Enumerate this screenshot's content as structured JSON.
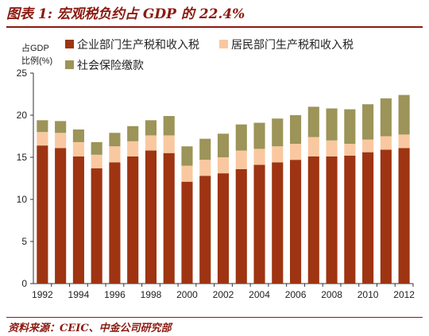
{
  "header": {
    "title": "图表 1: 宏观税负约占 GDP 的 22.4%"
  },
  "footer": {
    "source": "资料来源：CEIC、中金公司研究部"
  },
  "chart_data": {
    "type": "bar",
    "stacked": true,
    "ylabel": "占GDP\n比例(%)",
    "ylim": [
      0,
      25
    ],
    "yticks": [
      0,
      5,
      10,
      15,
      20,
      25
    ],
    "categories": [
      "1992",
      "1993",
      "1994",
      "1995",
      "1996",
      "1997",
      "1998",
      "1999",
      "2000",
      "2001",
      "2002",
      "2003",
      "2004",
      "2005",
      "2006",
      "2007",
      "2008",
      "2009",
      "2010",
      "2011",
      "2012"
    ],
    "xtick_labels": [
      "1992",
      "1994",
      "1996",
      "1998",
      "2000",
      "2002",
      "2004",
      "2006",
      "2008",
      "2010",
      "2012"
    ],
    "series": [
      {
        "name": "企业部门生产税和收入税",
        "color": "#9e3412",
        "values": [
          16.4,
          16.1,
          15.1,
          13.7,
          14.4,
          15.1,
          15.8,
          15.5,
          12.1,
          12.8,
          13.1,
          13.6,
          14.1,
          14.4,
          14.7,
          15.1,
          15.1,
          15.2,
          15.6,
          15.9,
          16.1
        ]
      },
      {
        "name": "居民部门生产税和收入税",
        "color": "#f9c8a0",
        "values": [
          1.6,
          1.8,
          1.7,
          1.6,
          1.9,
          1.8,
          1.8,
          2.1,
          1.9,
          1.9,
          1.9,
          2.2,
          1.9,
          1.9,
          1.9,
          2.3,
          1.9,
          1.4,
          1.5,
          1.6,
          1.6
        ]
      },
      {
        "name": "社会保险缴款",
        "color": "#9c9458",
        "values": [
          1.4,
          1.4,
          1.5,
          1.5,
          1.6,
          1.8,
          1.8,
          2.3,
          2.3,
          2.5,
          2.8,
          3.1,
          3.1,
          3.3,
          3.4,
          3.6,
          3.8,
          4.1,
          4.2,
          4.5,
          4.7
        ]
      }
    ],
    "legend_position": "top",
    "grid": false
  }
}
